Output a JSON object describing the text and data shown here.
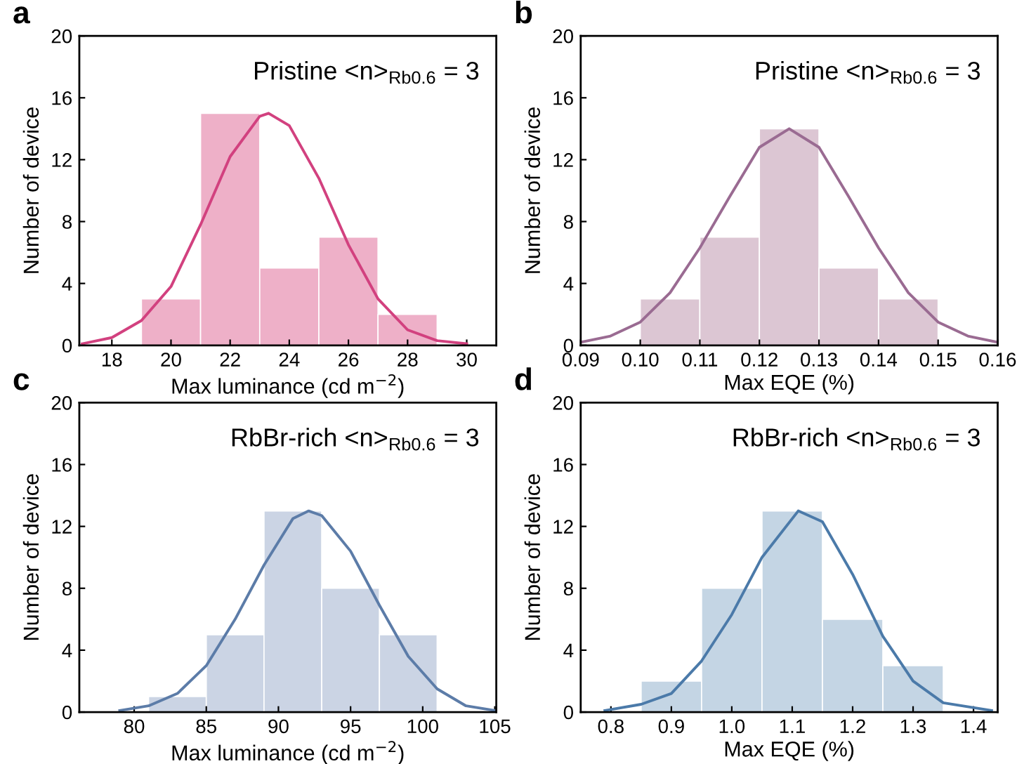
{
  "chart_data": [
    {
      "type": "histogram",
      "title": "a",
      "xlabel": "Max luminance (cd m$^{−2}$)",
      "ylabel": "Number of device",
      "annotations": [
        "Pristine <n>$_{Rb0.6}$ = 3"
      ],
      "bins": [
        19,
        21,
        23,
        25,
        27,
        29
      ],
      "values": [
        3,
        15,
        5,
        7,
        2
      ],
      "color": "#eeb0c8",
      "series": [
        {
          "type": "line",
          "color": "#d2417f",
          "x": [
            17,
            18,
            19,
            20,
            21,
            22,
            23,
            23.3,
            24,
            25,
            26,
            27,
            28,
            29,
            30
          ],
          "values": [
            0.1,
            0.5,
            1.6,
            3.8,
            7.8,
            12.2,
            14.8,
            15,
            14.2,
            10.8,
            6.5,
            3.0,
            1.0,
            0.3,
            0.1
          ]
        }
      ],
      "xlim": [
        16.9,
        31.0
      ],
      "xticks": [
        18,
        20,
        22,
        24,
        26,
        28,
        30
      ],
      "ylim": [
        0,
        20
      ],
      "yticks": [
        0,
        4,
        8,
        12,
        16,
        20
      ],
      "grid": false
    },
    {
      "type": "histogram",
      "title": "b",
      "xlabel": "Max EQE (%)",
      "ylabel": "Number of device",
      "annotations": [
        "Pristine <n>$_{Rb0.6}$ = 3"
      ],
      "bins": [
        0.1,
        0.11,
        0.12,
        0.13,
        0.14,
        0.15
      ],
      "values": [
        3,
        7,
        14,
        5,
        3
      ],
      "color": "#dcc6d3",
      "series": [
        {
          "type": "line",
          "color": "#9a6b92",
          "x": [
            0.09,
            0.095,
            0.1,
            0.105,
            0.11,
            0.115,
            0.12,
            0.125,
            0.13,
            0.135,
            0.14,
            0.145,
            0.15,
            0.155,
            0.16
          ],
          "values": [
            0.2,
            0.6,
            1.5,
            3.4,
            6.3,
            9.6,
            12.8,
            14,
            12.8,
            9.6,
            6.3,
            3.4,
            1.5,
            0.6,
            0.2
          ]
        }
      ],
      "xlim": [
        0.09,
        0.16
      ],
      "xticks": [
        {
          "value": 0.09,
          "label": "0.09"
        },
        {
          "value": 0.1,
          "label": "0.10"
        },
        {
          "value": 0.11,
          "label": "0.11"
        },
        {
          "value": 0.12,
          "label": "0.12"
        },
        {
          "value": 0.13,
          "label": "0.13"
        },
        {
          "value": 0.14,
          "label": "0.14"
        },
        {
          "value": 0.15,
          "label": "0.15"
        },
        {
          "value": 0.16,
          "label": "0.16"
        }
      ],
      "ylim": [
        0,
        20
      ],
      "yticks": [
        0,
        4,
        8,
        12,
        16,
        20
      ],
      "grid": false
    },
    {
      "type": "histogram",
      "title": "c",
      "xlabel": "Max luminance (cd m$^{−2}$)",
      "ylabel": "Number of device",
      "annotations": [
        "RbBr-rich <n>$_{Rb0.6}$ = 3"
      ],
      "bins": [
        81,
        85,
        89,
        93,
        97,
        101
      ],
      "values": [
        1,
        5,
        13,
        8,
        5
      ],
      "color": "#cbd4e4",
      "series": [
        {
          "type": "line",
          "color": "#5c7ca8",
          "x": [
            79,
            81,
            83,
            85,
            87,
            89,
            91,
            92.1,
            93,
            95,
            97,
            99,
            101,
            103,
            105
          ],
          "values": [
            0.1,
            0.4,
            1.2,
            3.0,
            6.0,
            9.5,
            12.5,
            13,
            12.7,
            10.4,
            6.9,
            3.6,
            1.5,
            0.4,
            0.1
          ]
        }
      ],
      "xlim": [
        76.2,
        105.1
      ],
      "xticks": [
        80,
        85,
        90,
        95,
        100,
        105
      ],
      "ylim": [
        0,
        20
      ],
      "yticks": [
        0,
        4,
        8,
        12,
        16,
        20
      ],
      "grid": false
    },
    {
      "type": "histogram",
      "title": "d",
      "xlabel": "Max EQE (%)",
      "ylabel": "Number of device",
      "annotations": [
        "RbBr-rich <n>$_{Rb0.6}$ = 3"
      ],
      "bins": [
        0.85,
        0.95,
        1.05,
        1.15,
        1.25,
        1.35
      ],
      "values": [
        2,
        8,
        13,
        6,
        3
      ],
      "color": "#c4d5e4",
      "series": [
        {
          "type": "line",
          "color": "#4b7aa9",
          "x": [
            0.79,
            0.85,
            0.9,
            0.95,
            1.0,
            1.05,
            1.11,
            1.15,
            1.2,
            1.25,
            1.3,
            1.35,
            1.43
          ],
          "values": [
            0.1,
            0.5,
            1.2,
            3.3,
            6.3,
            10.0,
            13,
            12.3,
            8.9,
            4.9,
            2.0,
            0.6,
            0.1
          ]
        }
      ],
      "xlim": [
        0.75,
        1.44
      ],
      "xticks": [
        {
          "value": 0.8,
          "label": "0.8"
        },
        {
          "value": 0.9,
          "label": "0.9"
        },
        {
          "value": 1.0,
          "label": "1.0"
        },
        {
          "value": 1.1,
          "label": "1.1"
        },
        {
          "value": 1.2,
          "label": "1.2"
        },
        {
          "value": 1.3,
          "label": "1.3"
        },
        {
          "value": 1.4,
          "label": "1.4"
        }
      ],
      "ylim": [
        0,
        20
      ],
      "yticks": [
        0,
        4,
        8,
        12,
        16,
        20
      ],
      "grid": false
    }
  ]
}
